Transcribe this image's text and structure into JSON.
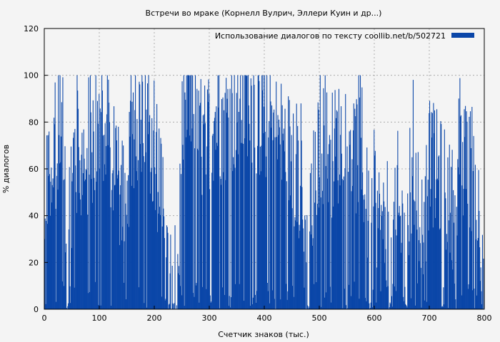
{
  "chart_data": {
    "type": "bar",
    "title": "Встречи во мраке (Корнелл Вулрич, Эллери Куин и др...)",
    "xlabel": "Счетчик знаков (тыс.)",
    "ylabel": "% диалогов",
    "xlim": [
      0,
      800
    ],
    "ylim": [
      0,
      120
    ],
    "xticks": [
      "0",
      "100",
      "200",
      "300",
      "400",
      "500",
      "600",
      "700",
      "800"
    ],
    "yticks": [
      "0",
      "20",
      "40",
      "60",
      "80",
      "100",
      "120"
    ],
    "grid": true,
    "legend_position": "top-right",
    "series": [
      {
        "name": "Использование диалогов по тексту  coollib.net/b/502721",
        "color": "#0a46a8",
        "bin_width": 1,
        "profile": [
          [
            0,
            10
          ],
          [
            5,
            45
          ],
          [
            10,
            55
          ],
          [
            15,
            55
          ],
          [
            20,
            60
          ],
          [
            25,
            80
          ],
          [
            30,
            90
          ],
          [
            35,
            65
          ],
          [
            40,
            40
          ],
          [
            45,
            35
          ],
          [
            50,
            55
          ],
          [
            60,
            62
          ],
          [
            70,
            62
          ],
          [
            80,
            68
          ],
          [
            90,
            60
          ],
          [
            100,
            70
          ],
          [
            110,
            85
          ],
          [
            120,
            70
          ],
          [
            130,
            55
          ],
          [
            140,
            45
          ],
          [
            150,
            60
          ],
          [
            160,
            65
          ],
          [
            170,
            70
          ],
          [
            180,
            75
          ],
          [
            190,
            80
          ],
          [
            200,
            65
          ],
          [
            210,
            55
          ],
          [
            215,
            45
          ],
          [
            220,
            20
          ],
          [
            230,
            10
          ],
          [
            240,
            8
          ],
          [
            245,
            25
          ],
          [
            250,
            55
          ],
          [
            260,
            95
          ],
          [
            270,
            90
          ],
          [
            280,
            75
          ],
          [
            290,
            70
          ],
          [
            300,
            78
          ],
          [
            310,
            82
          ],
          [
            320,
            80
          ],
          [
            330,
            80
          ],
          [
            340,
            82
          ],
          [
            350,
            85
          ],
          [
            360,
            88
          ],
          [
            370,
            92
          ],
          [
            380,
            88
          ],
          [
            390,
            82
          ],
          [
            400,
            82
          ],
          [
            410,
            80
          ],
          [
            420,
            75
          ],
          [
            430,
            72
          ],
          [
            440,
            70
          ],
          [
            450,
            65
          ],
          [
            460,
            60
          ],
          [
            470,
            35
          ],
          [
            480,
            15
          ],
          [
            490,
            55
          ],
          [
            500,
            70
          ],
          [
            510,
            72
          ],
          [
            520,
            65
          ],
          [
            530,
            70
          ],
          [
            540,
            72
          ],
          [
            550,
            78
          ],
          [
            560,
            70
          ],
          [
            570,
            65
          ],
          [
            580,
            60
          ],
          [
            590,
            35
          ],
          [
            600,
            50
          ],
          [
            610,
            35
          ],
          [
            620,
            30
          ],
          [
            630,
            15
          ],
          [
            640,
            40
          ],
          [
            650,
            35
          ],
          [
            660,
            25
          ],
          [
            670,
            55
          ],
          [
            680,
            40
          ],
          [
            690,
            35
          ],
          [
            700,
            65
          ],
          [
            710,
            60
          ],
          [
            720,
            55
          ],
          [
            730,
            50
          ],
          [
            740,
            42
          ],
          [
            750,
            50
          ],
          [
            760,
            60
          ],
          [
            770,
            65
          ],
          [
            780,
            55
          ],
          [
            790,
            40
          ],
          [
            800,
            20
          ]
        ],
        "gaps": [
          [
            40,
            44
          ],
          [
            225,
            228
          ],
          [
            233,
            237
          ],
          [
            478,
            482
          ],
          [
            590,
            594
          ],
          [
            626,
            630
          ],
          [
            656,
            660
          ],
          [
            722,
            725
          ]
        ],
        "seed": 502721,
        "jitter": 55
      }
    ]
  }
}
